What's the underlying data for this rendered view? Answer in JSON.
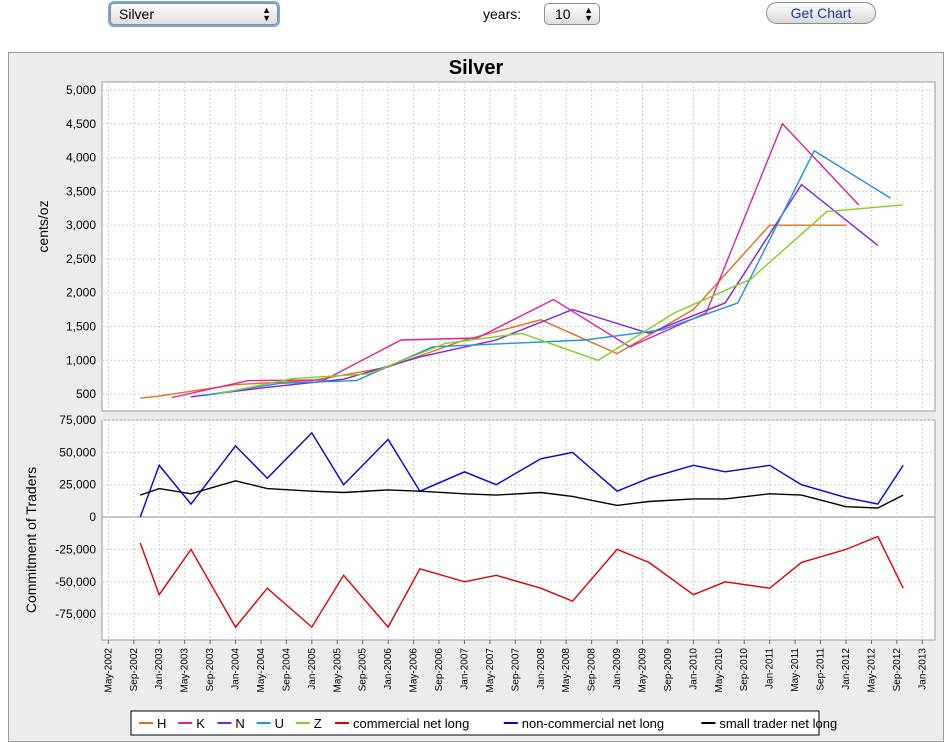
{
  "controls": {
    "commodity_value": "Silver",
    "years_label": "years:",
    "years_value": "10",
    "get_chart_label": "Get Chart"
  },
  "colors": {
    "H": "#e07020",
    "K": "#e020a0",
    "N": "#8020e0",
    "U": "#2090e0",
    "Z": "#80d020",
    "commercial": "#e00000",
    "noncommercial": "#0000e0",
    "small": "#000000"
  },
  "chart_data": [
    {
      "type": "line",
      "title": "Silver",
      "ylabel": "cents/oz",
      "ylim": [
        250,
        5000
      ],
      "yticks": [
        "500",
        "1,000",
        "1,500",
        "2,000",
        "2,500",
        "3,000",
        "3,500",
        "4,000",
        "4,500",
        "5,000"
      ],
      "grid": true,
      "series": [
        {
          "name": "H",
          "x": [
            "2002-10",
            "2003-01",
            "2004-01",
            "2005-01",
            "2006-01",
            "2007-01",
            "2008-01",
            "2009-01",
            "2010-01",
            "2011-01",
            "2012-01"
          ],
          "values": [
            440,
            470,
            640,
            700,
            900,
            1300,
            1600,
            1100,
            1750,
            3000,
            3000
          ]
        },
        {
          "name": "K",
          "x": [
            "2003-03",
            "2004-03",
            "2005-03",
            "2006-03",
            "2007-03",
            "2008-03",
            "2009-03",
            "2010-03",
            "2011-03",
            "2012-03"
          ],
          "values": [
            450,
            700,
            710,
            1300,
            1330,
            1900,
            1200,
            1700,
            4500,
            3300
          ]
        },
        {
          "name": "N",
          "x": [
            "2003-06",
            "2004-06",
            "2005-06",
            "2006-06",
            "2007-06",
            "2008-06",
            "2009-06",
            "2010-06",
            "2011-06",
            "2012-06"
          ],
          "values": [
            460,
            600,
            720,
            1050,
            1300,
            1750,
            1400,
            1850,
            3600,
            2700
          ]
        },
        {
          "name": "U",
          "x": [
            "2003-08",
            "2004-08",
            "2005-08",
            "2006-08",
            "2007-08",
            "2008-08",
            "2009-08",
            "2010-08",
            "2011-08",
            "2012-08"
          ],
          "values": [
            480,
            660,
            700,
            1200,
            1250,
            1300,
            1450,
            1850,
            4100,
            3400
          ]
        },
        {
          "name": "Z",
          "x": [
            "2003-10",
            "2004-10",
            "2005-10",
            "2006-10",
            "2007-10",
            "2008-10",
            "2009-10",
            "2010-10",
            "2011-10",
            "2012-10"
          ],
          "values": [
            500,
            730,
            800,
            1250,
            1400,
            1000,
            1700,
            2200,
            3200,
            3300
          ]
        }
      ],
      "legend": "bottom"
    },
    {
      "type": "line",
      "ylabel": "Commitment of Traders",
      "ylim": [
        -95000,
        75000
      ],
      "yticks": [
        "-75,000",
        "-50,000",
        "-25,000",
        "0",
        "25,000",
        "50,000",
        "75,000"
      ],
      "xticks": [
        "May-2002",
        "Sep-2002",
        "Jan-2003",
        "May-2003",
        "Sep-2003",
        "Jan-2004",
        "May-2004",
        "Sep-2004",
        "Jan-2005",
        "May-2005",
        "Sep-2005",
        "Jan-2006",
        "May-2006",
        "Sep-2006",
        "Jan-2007",
        "May-2007",
        "Sep-2007",
        "Jan-2008",
        "May-2008",
        "Sep-2008",
        "Jan-2009",
        "May-2009",
        "Sep-2009",
        "Jan-2010",
        "May-2010",
        "Sep-2010",
        "Jan-2011",
        "May-2011",
        "Sep-2011",
        "Jan-2012",
        "May-2012",
        "Sep-2012",
        "Jan-2013"
      ],
      "grid": true,
      "series": [
        {
          "name": "commercial net long",
          "x": [
            "2002-10",
            "2003-01",
            "2003-06",
            "2004-01",
            "2004-06",
            "2005-01",
            "2005-06",
            "2006-01",
            "2006-06",
            "2007-01",
            "2007-06",
            "2008-01",
            "2008-06",
            "2009-01",
            "2009-06",
            "2010-01",
            "2010-06",
            "2011-01",
            "2011-06",
            "2012-01",
            "2012-06",
            "2012-10"
          ],
          "values": [
            -20000,
            -60000,
            -25000,
            -85000,
            -55000,
            -85000,
            -45000,
            -85000,
            -40000,
            -50000,
            -45000,
            -55000,
            -65000,
            -25000,
            -35000,
            -60000,
            -50000,
            -55000,
            -35000,
            -25000,
            -15000,
            -55000
          ]
        },
        {
          "name": "non-commercial net long",
          "x": [
            "2002-10",
            "2003-01",
            "2003-06",
            "2004-01",
            "2004-06",
            "2005-01",
            "2005-06",
            "2006-01",
            "2006-06",
            "2007-01",
            "2007-06",
            "2008-01",
            "2008-06",
            "2009-01",
            "2009-06",
            "2010-01",
            "2010-06",
            "2011-01",
            "2011-06",
            "2012-01",
            "2012-06",
            "2012-10"
          ],
          "values": [
            0,
            40000,
            10000,
            55000,
            30000,
            65000,
            25000,
            60000,
            20000,
            35000,
            25000,
            45000,
            50000,
            20000,
            30000,
            40000,
            35000,
            40000,
            25000,
            15000,
            10000,
            40000
          ]
        },
        {
          "name": "small trader net long",
          "x": [
            "2002-10",
            "2003-01",
            "2003-06",
            "2004-01",
            "2004-06",
            "2005-01",
            "2005-06",
            "2006-01",
            "2006-06",
            "2007-01",
            "2007-06",
            "2008-01",
            "2008-06",
            "2009-01",
            "2009-06",
            "2010-01",
            "2010-06",
            "2011-01",
            "2011-06",
            "2012-01",
            "2012-06",
            "2012-10"
          ],
          "values": [
            17000,
            22000,
            18000,
            28000,
            22000,
            20000,
            19000,
            21000,
            20000,
            18000,
            17000,
            19000,
            16000,
            9000,
            12000,
            14000,
            14000,
            18000,
            17000,
            8000,
            7000,
            17000
          ]
        }
      ]
    }
  ],
  "legend": [
    "H",
    "K",
    "N",
    "U",
    "Z",
    "commercial net long",
    "non-commercial net long",
    "small trader net long"
  ]
}
